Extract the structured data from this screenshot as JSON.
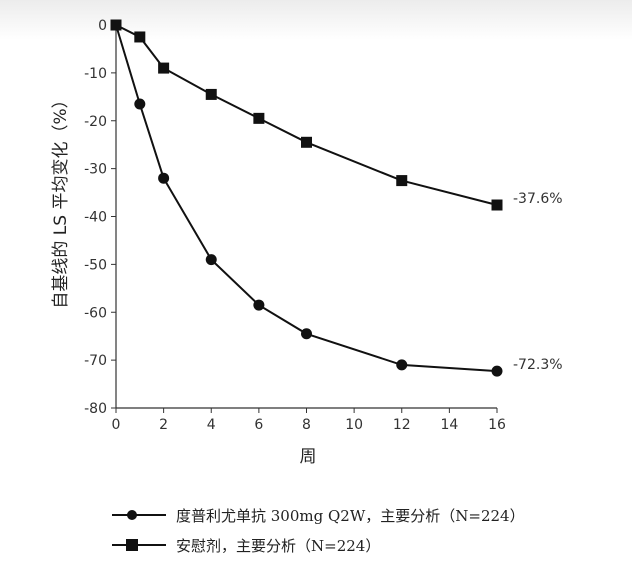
{
  "chart_data": {
    "type": "line",
    "xlabel": "周",
    "ylabel": "自基线的 LS 平均变化（%）",
    "xlim": [
      0,
      16
    ],
    "ylim": [
      -80,
      0
    ],
    "x_ticks": [
      0,
      2,
      4,
      6,
      8,
      10,
      12,
      14,
      16
    ],
    "y_ticks": [
      0,
      -10,
      -20,
      -30,
      -40,
      -50,
      -60,
      -70,
      -80
    ],
    "grid": false,
    "legend_position": "bottom",
    "series": [
      {
        "name": "度普利尤单抗 300mg Q2W，主要分析（N=224）",
        "marker": "circle",
        "color": "#111111",
        "x": [
          0,
          1,
          2,
          4,
          6,
          8,
          12,
          16
        ],
        "y": [
          0,
          -16.5,
          -32,
          -49,
          -58.5,
          -64.5,
          -71,
          -72.3
        ],
        "end_label": "-72.3%"
      },
      {
        "name": "安慰剂，主要分析（N=224）",
        "marker": "square",
        "color": "#111111",
        "x": [
          0,
          1,
          2,
          4,
          6,
          8,
          12,
          16
        ],
        "y": [
          0,
          -2.5,
          -9,
          -14.5,
          -19.5,
          -24.5,
          -32.5,
          -37.6
        ],
        "end_label": "-37.6%"
      }
    ]
  }
}
